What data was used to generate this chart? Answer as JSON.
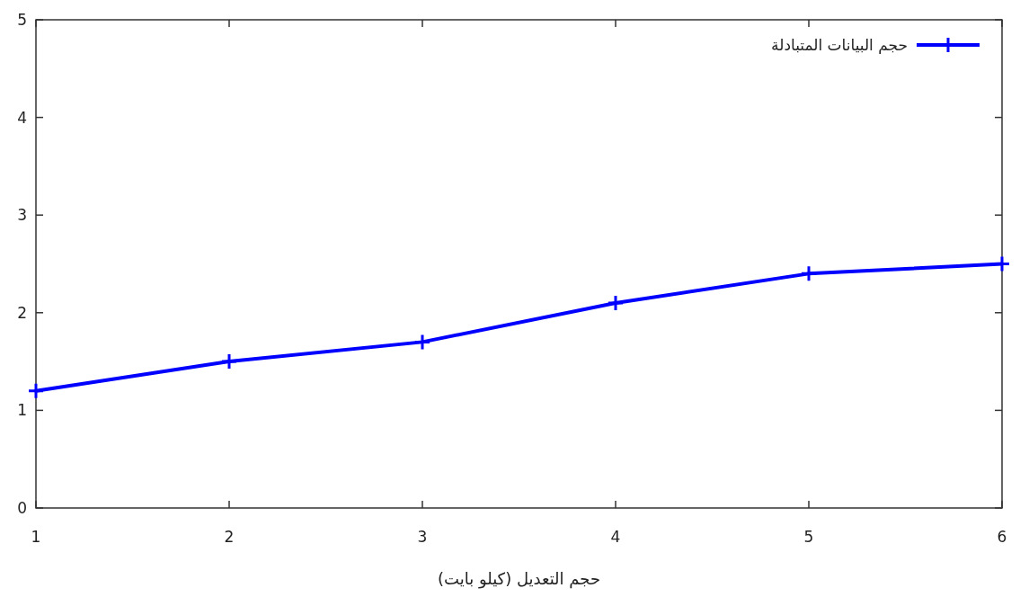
{
  "chart_data": {
    "type": "line",
    "xlabel": "حجم التعديل (كيلو بايت)",
    "x": [
      1,
      2,
      3,
      4,
      5,
      6
    ],
    "series": [
      {
        "name": "حجم البيانات المتبادلة",
        "color": "#0000ff",
        "values": [
          1.2,
          1.5,
          1.7,
          2.1,
          2.4,
          2.5
        ]
      }
    ],
    "xlim": [
      1,
      6
    ],
    "xticks": [
      1,
      2,
      3,
      4,
      5,
      6
    ],
    "ylim": [
      0,
      5
    ],
    "yticks": [
      0,
      1,
      2,
      3,
      4,
      5
    ],
    "grid": false,
    "legend": "top right",
    "marker": "cross",
    "line_style": "solid"
  }
}
